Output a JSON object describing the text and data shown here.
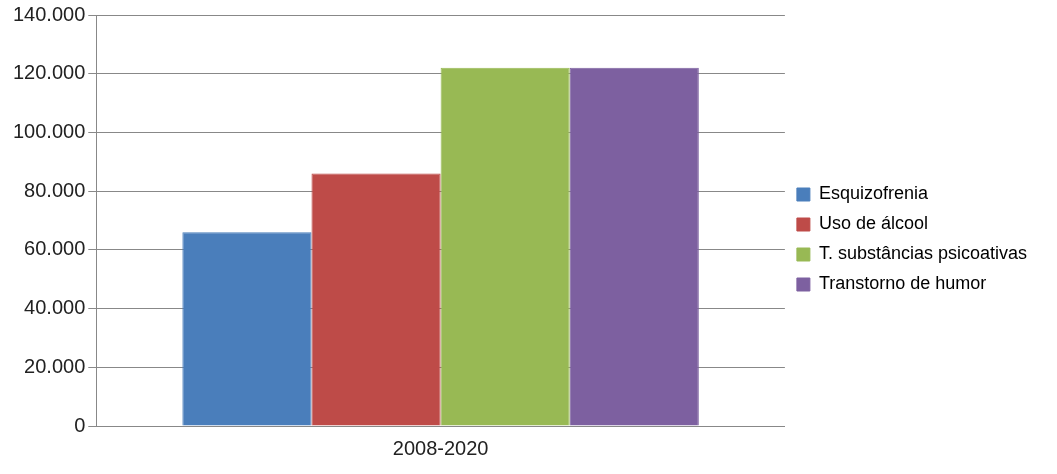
{
  "chart_data": {
    "type": "bar",
    "categories": [
      "2008-2020"
    ],
    "series": [
      {
        "name": "Esquizofrenia",
        "color": "#4a7ebb",
        "values": [
          66000
        ]
      },
      {
        "name": "Uso de álcool",
        "color": "#be4b48",
        "values": [
          86000
        ]
      },
      {
        "name": "T. substâncias psicoativas",
        "color": "#98b954",
        "values": [
          122000
        ]
      },
      {
        "name": "Transtorno de humor",
        "color": "#7d60a0",
        "values": [
          122000
        ]
      }
    ],
    "ylim": [
      0,
      140000
    ],
    "yticks": [
      {
        "value": 0,
        "label": "0"
      },
      {
        "value": 20000,
        "label": "20.000"
      },
      {
        "value": 40000,
        "label": "40.000"
      },
      {
        "value": 60000,
        "label": "60.000"
      },
      {
        "value": 80000,
        "label": "80.000"
      },
      {
        "value": 100000,
        "label": "100.000"
      },
      {
        "value": 120000,
        "label": "120.000"
      },
      {
        "value": 140000,
        "label": "140.000"
      }
    ],
    "grid": "y",
    "legend": "right"
  }
}
